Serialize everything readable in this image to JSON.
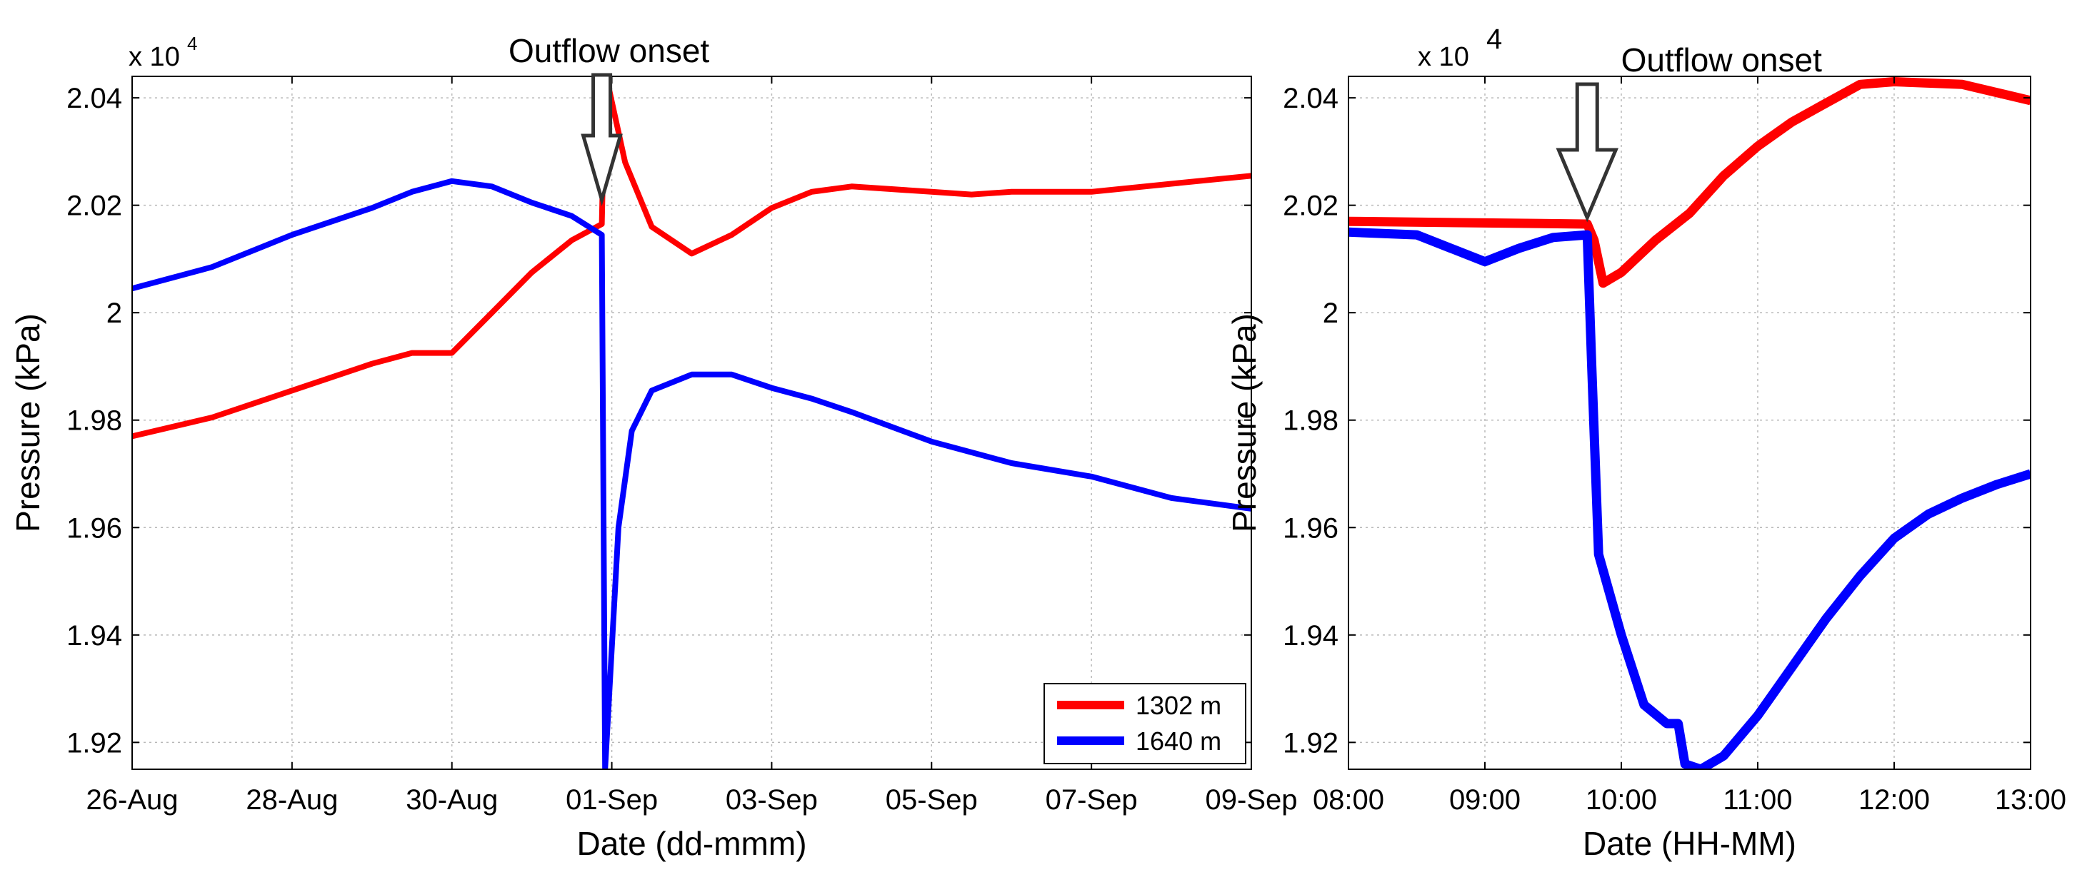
{
  "chart_data": [
    {
      "type": "line",
      "xlabel": "Date (dd-mmm)",
      "ylabel": "Pressure (kPa)",
      "multiplier_label": "x 10",
      "multiplier_exponent": "4",
      "annotation": "Outflow onset",
      "annotation_x": "2012-08-31T21:00",
      "xlim": [
        "2012-08-26T00:00",
        "2012-09-09T00:00"
      ],
      "ylim": [
        1.915,
        2.044
      ],
      "xticks": [
        {
          "x": "2012-08-26",
          "label": "26-Aug"
        },
        {
          "x": "2012-08-28",
          "label": "28-Aug"
        },
        {
          "x": "2012-08-30",
          "label": "30-Aug"
        },
        {
          "x": "2012-09-01",
          "label": "01-Sep"
        },
        {
          "x": "2012-09-03",
          "label": "03-Sep"
        },
        {
          "x": "2012-09-05",
          "label": "05-Sep"
        },
        {
          "x": "2012-09-07",
          "label": "07-Sep"
        },
        {
          "x": "2012-09-09",
          "label": "09-Sep"
        }
      ],
      "yticks": [
        {
          "y": 1.92,
          "label": "1.92"
        },
        {
          "y": 1.94,
          "label": "1.94"
        },
        {
          "y": 1.96,
          "label": "1.96"
        },
        {
          "y": 1.98,
          "label": "1.98"
        },
        {
          "y": 2.0,
          "label": "2"
        },
        {
          "y": 2.02,
          "label": "2.02"
        },
        {
          "y": 2.04,
          "label": "2.04"
        }
      ],
      "grid": true,
      "legend_position": "bottom-right",
      "series": [
        {
          "name": "1302 m",
          "color": "#ff0000",
          "points": [
            [
              "2012-08-26T00:00",
              1.977
            ],
            [
              "2012-08-27T00:00",
              1.9805
            ],
            [
              "2012-08-28T00:00",
              1.9855
            ],
            [
              "2012-08-29T00:00",
              1.9905
            ],
            [
              "2012-08-29T12:00",
              1.9925
            ],
            [
              "2012-08-30T00:00",
              1.9925
            ],
            [
              "2012-08-30T12:00",
              2.0
            ],
            [
              "2012-08-31T00:00",
              2.0075
            ],
            [
              "2012-08-31T12:00",
              2.0135
            ],
            [
              "2012-08-31T21:00",
              2.0165
            ],
            [
              "2012-08-31T22:00",
              2.045
            ],
            [
              "2012-09-01T04:00",
              2.028
            ],
            [
              "2012-09-01T12:00",
              2.016
            ],
            [
              "2012-09-02T00:00",
              2.011
            ],
            [
              "2012-09-02T12:00",
              2.0145
            ],
            [
              "2012-09-03T00:00",
              2.0195
            ],
            [
              "2012-09-03T12:00",
              2.0225
            ],
            [
              "2012-09-04T00:00",
              2.0235
            ],
            [
              "2012-09-05T00:00",
              2.0225
            ],
            [
              "2012-09-05T12:00",
              2.022
            ],
            [
              "2012-09-06T00:00",
              2.0225
            ],
            [
              "2012-09-07T00:00",
              2.0225
            ],
            [
              "2012-09-08T00:00",
              2.024
            ],
            [
              "2012-09-09T00:00",
              2.0255
            ]
          ]
        },
        {
          "name": "1640 m",
          "color": "#0000ff",
          "points": [
            [
              "2012-08-26T00:00",
              2.0045
            ],
            [
              "2012-08-26T12:00",
              2.0065
            ],
            [
              "2012-08-27T00:00",
              2.0085
            ],
            [
              "2012-08-28T00:00",
              2.0145
            ],
            [
              "2012-08-29T00:00",
              2.0195
            ],
            [
              "2012-08-29T12:00",
              2.0225
            ],
            [
              "2012-08-30T00:00",
              2.0245
            ],
            [
              "2012-08-30T12:00",
              2.0235
            ],
            [
              "2012-08-31T00:00",
              2.0205
            ],
            [
              "2012-08-31T12:00",
              2.018
            ],
            [
              "2012-08-31T21:00",
              2.0145
            ],
            [
              "2012-08-31T22:00",
              1.915
            ],
            [
              "2012-09-01T02:00",
              1.96
            ],
            [
              "2012-09-01T06:00",
              1.978
            ],
            [
              "2012-09-01T12:00",
              1.9855
            ],
            [
              "2012-09-02T00:00",
              1.9885
            ],
            [
              "2012-09-02T12:00",
              1.9885
            ],
            [
              "2012-09-03T00:00",
              1.986
            ],
            [
              "2012-09-03T12:00",
              1.984
            ],
            [
              "2012-09-04T00:00",
              1.9815
            ],
            [
              "2012-09-05T00:00",
              1.976
            ],
            [
              "2012-09-06T00:00",
              1.972
            ],
            [
              "2012-09-07T00:00",
              1.9695
            ],
            [
              "2012-09-08T00:00",
              1.9655
            ],
            [
              "2012-09-09T00:00",
              1.9635
            ]
          ]
        }
      ]
    },
    {
      "type": "line",
      "xlabel": "Date (HH-MM)",
      "ylabel": "Pressure (kPa)",
      "multiplier_label": "x 10",
      "multiplier_exponent": "4",
      "annotation": "Outflow onset",
      "annotation_x": "09:45",
      "xlim": [
        "08:00",
        "13:00"
      ],
      "ylim": [
        1.915,
        2.044
      ],
      "xticks": [
        {
          "x": "08:00",
          "label": "08:00"
        },
        {
          "x": "09:00",
          "label": "09:00"
        },
        {
          "x": "10:00",
          "label": "10:00"
        },
        {
          "x": "11:00",
          "label": "11:00"
        },
        {
          "x": "12:00",
          "label": "12:00"
        },
        {
          "x": "13:00",
          "label": "13:00"
        }
      ],
      "yticks": [
        {
          "y": 1.92,
          "label": "1.92"
        },
        {
          "y": 1.94,
          "label": "1.94"
        },
        {
          "y": 1.96,
          "label": "1.96"
        },
        {
          "y": 1.98,
          "label": "1.98"
        },
        {
          "y": 2.0,
          "label": "2"
        },
        {
          "y": 2.02,
          "label": "2.02"
        },
        {
          "y": 2.04,
          "label": "2.04"
        }
      ],
      "grid": true,
      "series": [
        {
          "name": "",
          "color": "#ff0000",
          "points": [
            [
              "08:00",
              2.017
            ],
            [
              "09:45",
              2.0165
            ],
            [
              "09:48",
              2.0135
            ],
            [
              "09:52",
              2.0055
            ],
            [
              "10:00",
              2.0075
            ],
            [
              "10:15",
              2.0135
            ],
            [
              "10:30",
              2.0185
            ],
            [
              "10:45",
              2.0255
            ],
            [
              "11:00",
              2.031
            ],
            [
              "11:15",
              2.0355
            ],
            [
              "11:30",
              2.039
            ],
            [
              "11:45",
              2.0425
            ],
            [
              "12:00",
              2.043
            ],
            [
              "12:30",
              2.0425
            ],
            [
              "13:00",
              2.0395
            ]
          ]
        },
        {
          "name": "",
          "color": "#0000ff",
          "points": [
            [
              "08:00",
              2.015
            ],
            [
              "08:30",
              2.0145
            ],
            [
              "08:45",
              2.012
            ],
            [
              "09:00",
              2.0095
            ],
            [
              "09:15",
              2.012
            ],
            [
              "09:30",
              2.014
            ],
            [
              "09:45",
              2.0145
            ],
            [
              "09:47",
              1.99
            ],
            [
              "09:50",
              1.955
            ],
            [
              "10:00",
              1.94
            ],
            [
              "10:10",
              1.927
            ],
            [
              "10:20",
              1.9235
            ],
            [
              "10:25",
              1.9235
            ],
            [
              "10:28",
              1.916
            ],
            [
              "10:35",
              1.915
            ],
            [
              "10:45",
              1.9175
            ],
            [
              "11:00",
              1.925
            ],
            [
              "11:15",
              1.934
            ],
            [
              "11:30",
              1.943
            ],
            [
              "11:45",
              1.951
            ],
            [
              "12:00",
              1.958
            ],
            [
              "12:15",
              1.9625
            ],
            [
              "12:30",
              1.9655
            ],
            [
              "12:45",
              1.968
            ],
            [
              "13:00",
              1.97
            ]
          ]
        }
      ]
    }
  ]
}
